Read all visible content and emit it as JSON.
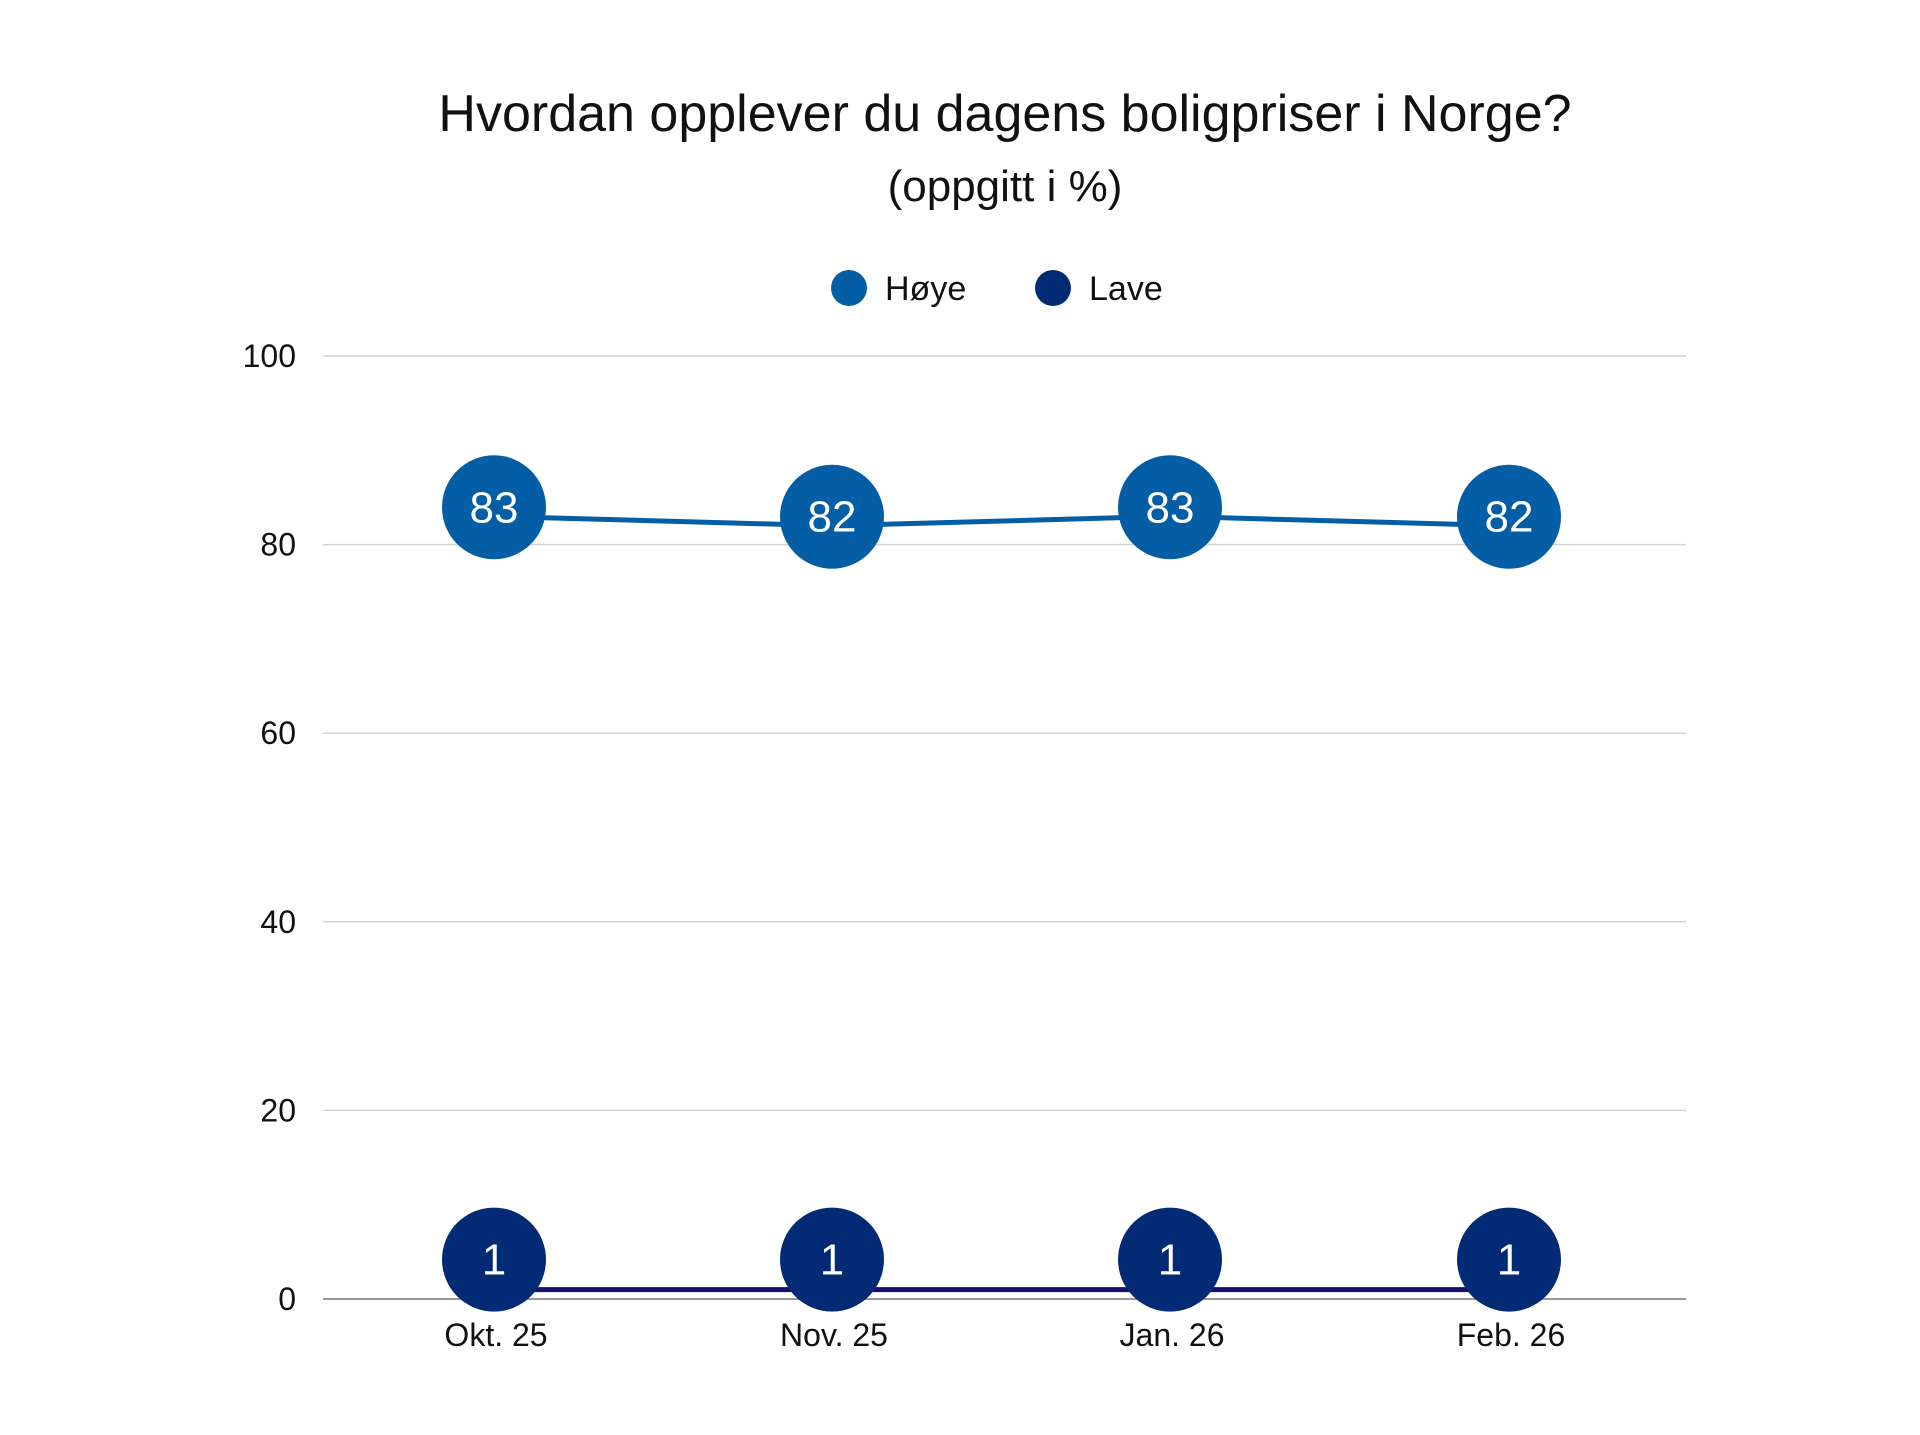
{
  "chart_data": {
    "type": "line",
    "title": "Hvordan opplever du dagens boligpriser i Norge?",
    "subtitle": "(oppgitt i %)",
    "categories": [
      "Okt. 25",
      "Nov. 25",
      "Jan. 26",
      "Feb. 26"
    ],
    "series": [
      {
        "name": "Høye",
        "values": [
          83,
          82,
          83,
          82
        ],
        "color": "#035ea6",
        "marker_color": "#035ea6"
      },
      {
        "name": "Lave",
        "values": [
          1,
          1,
          1,
          1
        ],
        "color": "#14106b",
        "marker_color": "#032a75"
      }
    ],
    "ylim": [
      0,
      100
    ],
    "yticks": [
      0,
      20,
      40,
      60,
      80,
      100
    ],
    "grid": true,
    "legend": "top-center",
    "data_labels": true
  }
}
